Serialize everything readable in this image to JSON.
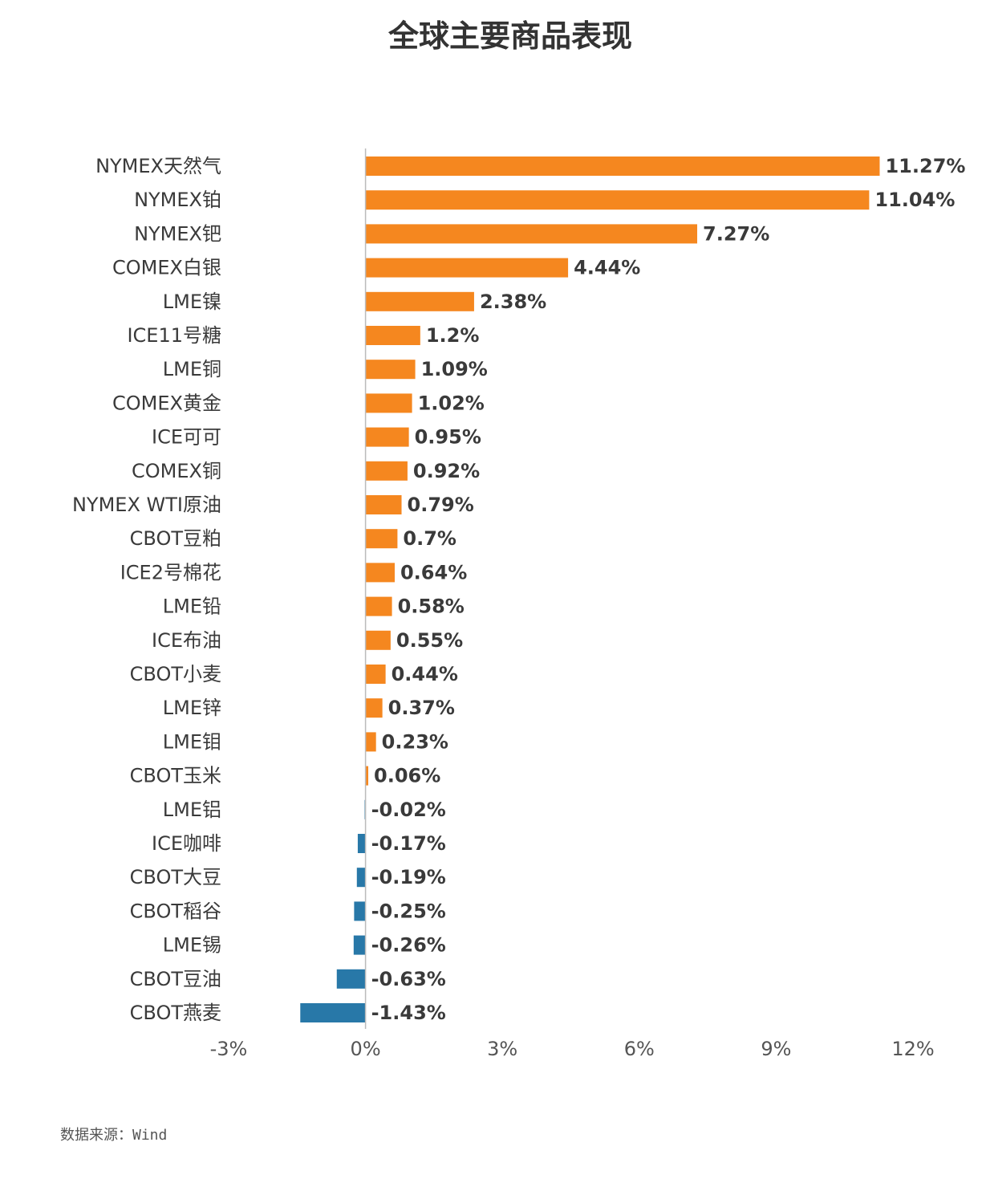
{
  "chart_data": {
    "type": "bar",
    "orientation": "horizontal",
    "title": "全球主要商品表现",
    "categories": [
      "NYMEX天然气",
      "NYMEX铂",
      "NYMEX钯",
      "COMEX白银",
      "LME镍",
      "ICE11号糖",
      "LME铜",
      "COMEX黄金",
      "ICE可可",
      "COMEX铜",
      "NYMEX WTI原油",
      "CBOT豆粕",
      "ICE2号棉花",
      "LME铅",
      "ICE布油",
      "CBOT小麦",
      "LME锌",
      "LME钼",
      "CBOT玉米",
      "LME铝",
      "ICE咖啡",
      "CBOT大豆",
      "CBOT稻谷",
      "LME锡",
      "CBOT豆油",
      "CBOT燕麦"
    ],
    "values": [
      11.27,
      11.04,
      7.27,
      4.44,
      2.38,
      1.2,
      1.09,
      1.02,
      0.95,
      0.92,
      0.79,
      0.7,
      0.64,
      0.58,
      0.55,
      0.44,
      0.37,
      0.23,
      0.06,
      -0.02,
      -0.17,
      -0.19,
      -0.25,
      -0.26,
      -0.63,
      -1.43
    ],
    "value_labels": [
      "11.27%",
      "11.04%",
      "7.27%",
      "4.44%",
      "2.38%",
      "1.2%",
      "1.09%",
      "1.02%",
      "0.95%",
      "0.92%",
      "0.79%",
      "0.7%",
      "0.64%",
      "0.58%",
      "0.55%",
      "0.44%",
      "0.37%",
      "0.23%",
      "0.06%",
      "-0.02%",
      "-0.17%",
      "-0.19%",
      "-0.25%",
      "-0.26%",
      "-0.63%",
      "-1.43%"
    ],
    "xlim": [
      -3,
      12
    ],
    "xticks": [
      -3,
      0,
      3,
      6,
      9,
      12
    ],
    "xtick_labels": [
      "-3%",
      "0%",
      "3%",
      "6%",
      "9%",
      "12%"
    ],
    "grid": false,
    "legend": "none",
    "colors": {
      "positive": "#F5871F",
      "negative": "#2878A8"
    }
  },
  "footer": {
    "source": "数据来源：Wind"
  }
}
